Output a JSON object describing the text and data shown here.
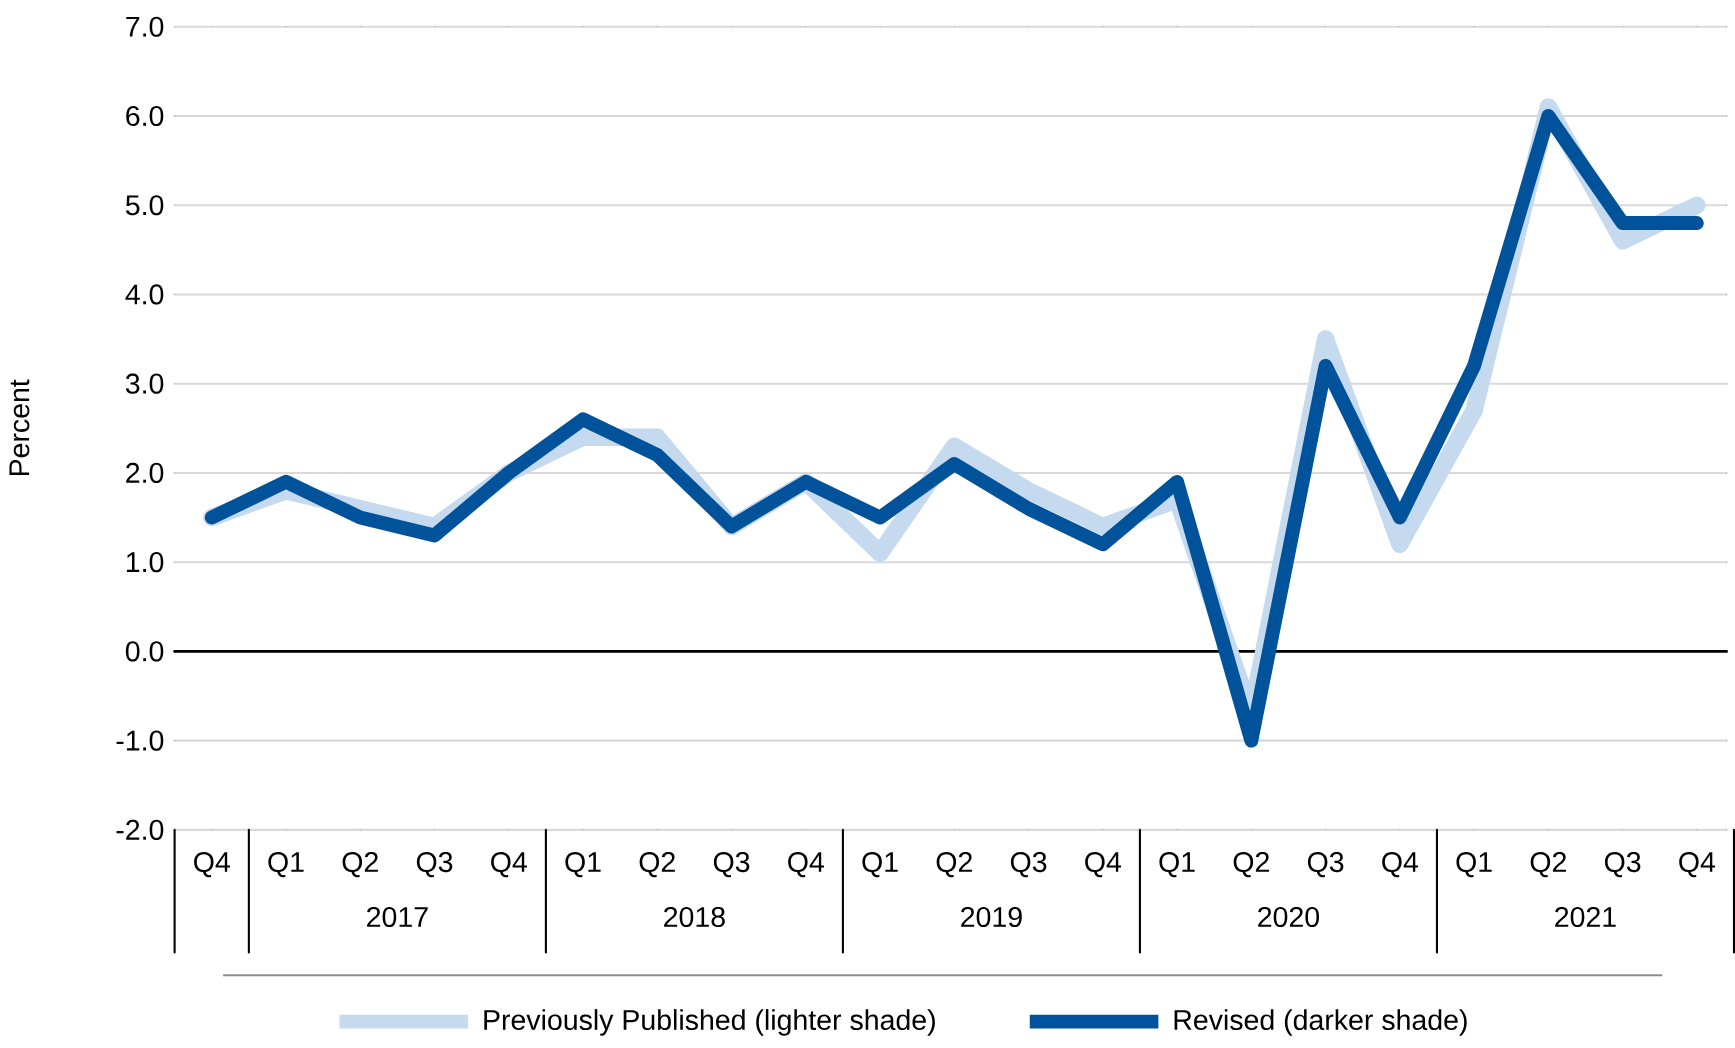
{
  "chart_data": {
    "type": "line",
    "ylabel": "Percent",
    "categories": [
      "Q4",
      "Q1",
      "Q2",
      "Q3",
      "Q4",
      "Q1",
      "Q2",
      "Q3",
      "Q4",
      "Q1",
      "Q2",
      "Q3",
      "Q4",
      "Q1",
      "Q2",
      "Q3",
      "Q4",
      "Q1",
      "Q2",
      "Q3",
      "Q4"
    ],
    "series": [
      {
        "name": "Previously Published (lighter shade)",
        "color": "#c5d9ef",
        "values": [
          1.5,
          1.8,
          1.6,
          1.4,
          2.0,
          2.4,
          2.4,
          1.4,
          1.9,
          1.1,
          2.3,
          1.8,
          1.4,
          1.7,
          -0.7,
          3.5,
          1.2,
          2.7,
          6.1,
          4.6,
          5.0
        ]
      },
      {
        "name": "Revised (darker shade)",
        "color": "#00539b",
        "values": [
          1.5,
          1.9,
          1.5,
          1.3,
          2.0,
          2.6,
          2.2,
          1.4,
          1.9,
          1.5,
          2.1,
          1.6,
          1.2,
          1.9,
          -1.0,
          3.2,
          1.5,
          3.2,
          6.0,
          4.8,
          4.8
        ]
      }
    ],
    "ylim": [
      -2,
      7
    ],
    "yticks": [
      {
        "value": -2,
        "label": "-2.0"
      },
      {
        "value": -1,
        "label": "-1.0"
      },
      {
        "value": 0,
        "label": "0.0"
      },
      {
        "value": 1,
        "label": "1.0"
      },
      {
        "value": 2,
        "label": "2.0"
      },
      {
        "value": 3,
        "label": "3.0"
      },
      {
        "value": 4,
        "label": "4.0"
      },
      {
        "value": 5,
        "label": "5.0"
      },
      {
        "value": 6,
        "label": "6.0"
      },
      {
        "value": 7,
        "label": "7.0"
      }
    ],
    "ref_lines": [
      {
        "axis": "y",
        "value": 0,
        "color": "#000000"
      }
    ],
    "annotations": [
      "2017",
      "2018",
      "2019",
      "2020",
      "2021"
    ],
    "grid": "y",
    "legend": "bottom",
    "marker": "none",
    "line_style": "solid"
  }
}
